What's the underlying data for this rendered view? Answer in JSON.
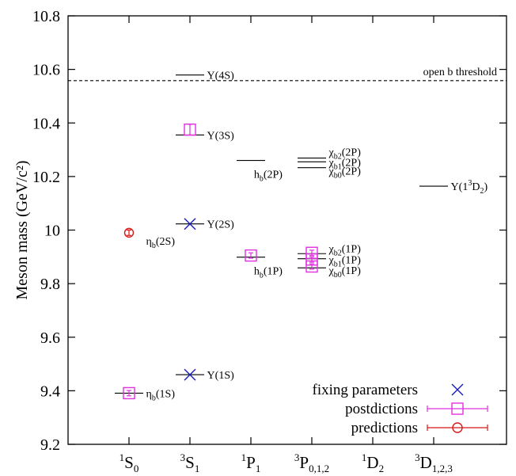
{
  "chart_data": {
    "type": "scatter",
    "ylabel": "Meson mass (GeV/c²)",
    "ylim": [
      9.2,
      10.8
    ],
    "yticks": [
      9.2,
      9.4,
      9.6,
      9.8,
      10.0,
      10.2,
      10.4,
      10.6,
      10.8
    ],
    "ytick_labels": [
      "9.2",
      "9.4",
      "9.6",
      "9.8",
      "10",
      "10.2",
      "10.4",
      "10.6",
      "10.8"
    ],
    "categories": [
      {
        "sup": "1",
        "main": "S",
        "sub": "0"
      },
      {
        "sup": "3",
        "main": "S",
        "sub": "1"
      },
      {
        "sup": "1",
        "main": "P",
        "sub": "1"
      },
      {
        "sup": "3",
        "main": "P",
        "sub": "0,1,2"
      },
      {
        "sup": "1",
        "main": "D",
        "sub": "2"
      },
      {
        "sup": "3",
        "main": "D",
        "sub": "1,2,3"
      }
    ],
    "grid": false,
    "legend_position": "bottom-right",
    "threshold": {
      "value": 10.558,
      "label": "open b threshold"
    },
    "experimental_levels": [
      {
        "cat": 0,
        "mass": 9.391,
        "name": "η",
        "sub": "b",
        "suffix": "(1S)",
        "lx": 0.28,
        "dy": 5
      },
      {
        "cat": 0,
        "mass": 9.999,
        "name": "η",
        "sub": "b",
        "suffix": "(2S)",
        "lx": 0.28,
        "dy": 18,
        "no_line": true
      },
      {
        "cat": 1,
        "mass": 9.46,
        "name": "Υ",
        "sub": "",
        "suffix": "(1S)",
        "lx": 0.28,
        "dy": 5
      },
      {
        "cat": 1,
        "mass": 10.023,
        "name": "Υ",
        "sub": "",
        "suffix": "(2S)",
        "lx": 0.28,
        "dy": 5
      },
      {
        "cat": 1,
        "mass": 10.355,
        "name": "Υ",
        "sub": "",
        "suffix": "(3S)",
        "lx": 0.28,
        "dy": 5
      },
      {
        "cat": 1,
        "mass": 10.579,
        "name": "Υ",
        "sub": "",
        "suffix": "(4S)",
        "lx": 0.28,
        "dy": 5
      },
      {
        "cat": 2,
        "mass": 9.899,
        "name": "h",
        "sub": "b",
        "suffix": "(1P)",
        "lx": 0.05,
        "dy": 22
      },
      {
        "cat": 2,
        "mass": 10.26,
        "name": "h",
        "sub": "b",
        "suffix": "(2P)",
        "lx": 0.05,
        "dy": 22
      },
      {
        "cat": 3,
        "mass": 9.859,
        "name": "χ",
        "sub": "b0",
        "suffix": "(1P)",
        "lx": 0.28,
        "dy": 8
      },
      {
        "cat": 3,
        "mass": 9.893,
        "name": "χ",
        "sub": "b1",
        "suffix": "(1P)",
        "lx": 0.28,
        "dy": 6
      },
      {
        "cat": 3,
        "mass": 9.912,
        "name": "χ",
        "sub": "b2",
        "suffix": "(1P)",
        "lx": 0.28,
        "dy": -2
      },
      {
        "cat": 3,
        "mass": 10.233,
        "name": "χ",
        "sub": "b0",
        "suffix": "(2P)",
        "lx": 0.28,
        "dy": 9
      },
      {
        "cat": 3,
        "mass": 10.255,
        "name": "χ",
        "sub": "b1",
        "suffix": "(2P)",
        "lx": 0.28,
        "dy": 5
      },
      {
        "cat": 3,
        "mass": 10.269,
        "name": "χ",
        "sub": "b2",
        "suffix": "(2P)",
        "lx": 0.28,
        "dy": -3
      },
      {
        "cat": 5,
        "mass": 10.164,
        "name": "Υ(1",
        "sup": "3",
        "main2": "D",
        "sub": "2",
        "suffix": ")",
        "lx": 0.28,
        "dy": 5
      }
    ],
    "series": [
      {
        "name": "fixing parameters",
        "marker": "cross",
        "color": "#1c1cb8",
        "points": [
          {
            "cat": 1,
            "y": 9.46
          },
          {
            "cat": 1,
            "y": 10.023
          }
        ]
      },
      {
        "name": "postdictions",
        "marker": "square",
        "color": "#e030e0",
        "points": [
          {
            "cat": 0,
            "y": 9.391,
            "err": 0.01
          },
          {
            "cat": 1,
            "y": 10.375,
            "err": 0.02
          },
          {
            "cat": 2,
            "y": 9.905,
            "err": 0.01
          },
          {
            "cat": 3,
            "y": 9.864,
            "err": 0.01
          },
          {
            "cat": 3,
            "y": 9.89,
            "err": 0.01
          },
          {
            "cat": 3,
            "y": 9.915,
            "err": 0.01
          }
        ]
      },
      {
        "name": "predictions",
        "marker": "circle",
        "color": "#d81818",
        "points": [
          {
            "cat": 0,
            "y": 9.99,
            "err": 0.01
          }
        ]
      }
    ]
  }
}
